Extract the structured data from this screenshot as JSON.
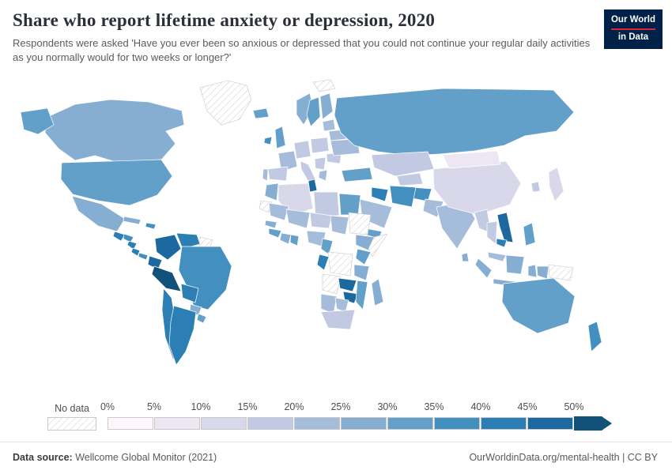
{
  "header": {
    "title": "Share who report lifetime anxiety or depression, 2020",
    "subtitle": "Respondents were asked 'Have you ever been so anxious or depressed that you could not continue your regular daily activities as you normally would for two weeks or longer?'",
    "logo": {
      "line1": "Our World",
      "line2": "in Data",
      "bg_color": "#002147",
      "accent_color": "#e0243a"
    }
  },
  "legend": {
    "no_data_label": "No data",
    "ticks": [
      "0%",
      "5%",
      "10%",
      "15%",
      "20%",
      "25%",
      "30%",
      "35%",
      "40%",
      "45%",
      "50%"
    ]
  },
  "footer": {
    "source_label": "Data source:",
    "source_value": " Wellcome Global Monitor (2021)",
    "right_text": "OurWorldinData.org/mental-health | CC BY"
  },
  "chart_data": {
    "type": "choropleth",
    "title": "Share who report lifetime anxiety or depression, 2020",
    "unit": "%",
    "bin_size": 5,
    "range": [
      0,
      55
    ],
    "legend_position": "bottom",
    "no_data_fill": "hatched",
    "palette": [
      "#fef6fa",
      "#ece7f2",
      "#d9d8ea",
      "#c2c9e2",
      "#a5bddb",
      "#86aed2",
      "#629fc9",
      "#4390c0",
      "#2c7fb4",
      "#1b699f",
      "#11517a"
    ],
    "countries": [
      {
        "name": "Canada",
        "value": 26
      },
      {
        "name": "United States",
        "value": 31
      },
      {
        "name": "Mexico",
        "value": 29
      },
      {
        "name": "Guatemala",
        "value": 42
      },
      {
        "name": "Honduras",
        "value": 38
      },
      {
        "name": "Nicaragua",
        "value": 43
      },
      {
        "name": "Costa Rica",
        "value": 44
      },
      {
        "name": "Panama",
        "value": 36
      },
      {
        "name": "Cuba",
        "value": 28
      },
      {
        "name": "Dominican Republic",
        "value": 35
      },
      {
        "name": "Colombia",
        "value": 47
      },
      {
        "name": "Venezuela",
        "value": 42
      },
      {
        "name": "Guyana",
        "value": null
      },
      {
        "name": "Ecuador",
        "value": 45
      },
      {
        "name": "Peru",
        "value": 52
      },
      {
        "name": "Brazil",
        "value": 37
      },
      {
        "name": "Bolivia",
        "value": 43
      },
      {
        "name": "Paraguay",
        "value": 28
      },
      {
        "name": "Uruguay",
        "value": 33
      },
      {
        "name": "Chile",
        "value": 42
      },
      {
        "name": "Argentina",
        "value": 41
      },
      {
        "name": "Greenland",
        "value": null
      },
      {
        "name": "Svalbard",
        "value": null
      },
      {
        "name": "Iceland",
        "value": 31
      },
      {
        "name": "Ireland",
        "value": 37
      },
      {
        "name": "United Kingdom",
        "value": 34
      },
      {
        "name": "Norway",
        "value": 29
      },
      {
        "name": "Sweden",
        "value": 31
      },
      {
        "name": "Finland",
        "value": 29
      },
      {
        "name": "France",
        "value": 22
      },
      {
        "name": "Spain",
        "value": 17
      },
      {
        "name": "Portugal",
        "value": 21
      },
      {
        "name": "Germany",
        "value": 16
      },
      {
        "name": "Poland",
        "value": 16
      },
      {
        "name": "Italy",
        "value": 19
      },
      {
        "name": "Serbia",
        "value": 18
      },
      {
        "name": "Greece",
        "value": 22
      },
      {
        "name": "Romania",
        "value": 19
      },
      {
        "name": "Ukraine",
        "value": 22
      },
      {
        "name": "Belarus",
        "value": 20
      },
      {
        "name": "Lithuania",
        "value": 22
      },
      {
        "name": "Russia",
        "value": 30
      },
      {
        "name": "Turkey",
        "value": 33
      },
      {
        "name": "Iraq",
        "value": 41
      },
      {
        "name": "Iran",
        "value": 36
      },
      {
        "name": "Saudi Arabia",
        "value": 22
      },
      {
        "name": "Yemen",
        "value": 33
      },
      {
        "name": "Kazakhstan",
        "value": 15
      },
      {
        "name": "Uzbekistan",
        "value": 17
      },
      {
        "name": "Afghanistan",
        "value": 35
      },
      {
        "name": "Pakistan",
        "value": 24
      },
      {
        "name": "India",
        "value": 24
      },
      {
        "name": "Sri Lanka",
        "value": 28
      },
      {
        "name": "China",
        "value": 11
      },
      {
        "name": "Mongolia",
        "value": 9
      },
      {
        "name": "Japan",
        "value": 13
      },
      {
        "name": "South Korea",
        "value": 19
      },
      {
        "name": "Myanmar",
        "value": 17
      },
      {
        "name": "Thailand",
        "value": 16
      },
      {
        "name": "Vietnam",
        "value": 46
      },
      {
        "name": "Cambodia",
        "value": 42
      },
      {
        "name": "Malaysia",
        "value": 24
      },
      {
        "name": "Indonesia",
        "value": 29
      },
      {
        "name": "Philippines",
        "value": 31
      },
      {
        "name": "Papua New Guinea",
        "value": null
      },
      {
        "name": "Morocco",
        "value": 26
      },
      {
        "name": "Western Sahara",
        "value": null
      },
      {
        "name": "Algeria",
        "value": 11
      },
      {
        "name": "Tunisia",
        "value": 46
      },
      {
        "name": "Libya",
        "value": 16
      },
      {
        "name": "Egypt",
        "value": 30
      },
      {
        "name": "Mauritania",
        "value": 22
      },
      {
        "name": "Mali",
        "value": 23
      },
      {
        "name": "Niger",
        "value": 17
      },
      {
        "name": "Chad",
        "value": 24
      },
      {
        "name": "Sudan",
        "value": null
      },
      {
        "name": "Senegal",
        "value": 26
      },
      {
        "name": "Guinea",
        "value": 31
      },
      {
        "name": "Cote d'Ivoire",
        "value": 28
      },
      {
        "name": "Ghana",
        "value": 31
      },
      {
        "name": "Nigeria",
        "value": 21
      },
      {
        "name": "Cameroon",
        "value": 31
      },
      {
        "name": "Ethiopia",
        "value": 26
      },
      {
        "name": "Somalia",
        "value": null
      },
      {
        "name": "Kenya",
        "value": 31
      },
      {
        "name": "Tanzania",
        "value": 29
      },
      {
        "name": "DR Congo",
        "value": null
      },
      {
        "name": "Congo",
        "value": 41
      },
      {
        "name": "Angola",
        "value": null
      },
      {
        "name": "Zambia",
        "value": 45
      },
      {
        "name": "Zimbabwe",
        "value": 46
      },
      {
        "name": "Mozambique",
        "value": 31
      },
      {
        "name": "Namibia",
        "value": 22
      },
      {
        "name": "Botswana",
        "value": 20
      },
      {
        "name": "South Africa",
        "value": 17
      },
      {
        "name": "Madagascar",
        "value": 26
      },
      {
        "name": "Australia",
        "value": 31
      },
      {
        "name": "New Zealand",
        "value": 36
      }
    ]
  }
}
